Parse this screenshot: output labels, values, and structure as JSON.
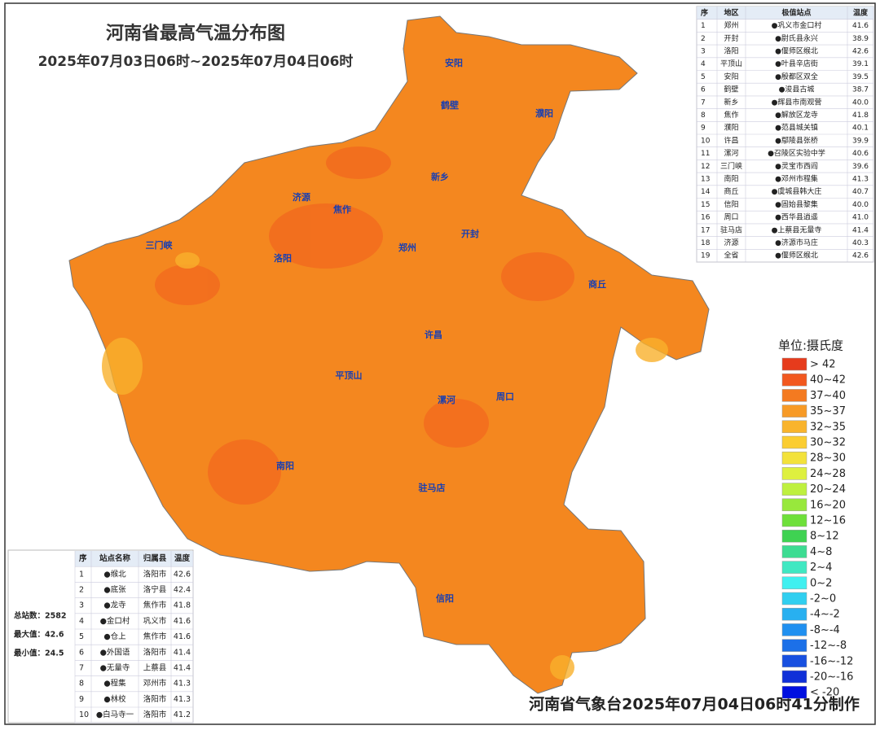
{
  "header": {
    "title": "河南省最高气温分布图",
    "subtitle": "2025年07月03日06时~2025年07月04日06时"
  },
  "extreme_table": {
    "columns": [
      "序",
      "地区",
      "极值站点",
      "温度"
    ],
    "rows": [
      [
        "1",
        "郑州",
        "●巩义市金口村",
        "41.6"
      ],
      [
        "2",
        "开封",
        "●尉氏县永兴",
        "38.9"
      ],
      [
        "3",
        "洛阳",
        "●偃师区缑北",
        "42.6"
      ],
      [
        "4",
        "平顶山",
        "●叶县辛店街",
        "39.1"
      ],
      [
        "5",
        "安阳",
        "●殷都区双全",
        "39.5"
      ],
      [
        "6",
        "鹤壁",
        "●浚县古城",
        "38.7"
      ],
      [
        "7",
        "新乡",
        "●辉县市南观营",
        "40.0"
      ],
      [
        "8",
        "焦作",
        "●解放区龙寺",
        "41.8"
      ],
      [
        "9",
        "濮阳",
        "●范县城关镇",
        "40.1"
      ],
      [
        "10",
        "许昌",
        "●鄢陵县张桥",
        "39.9"
      ],
      [
        "11",
        "漯河",
        "●召陵区实验中学",
        "40.6"
      ],
      [
        "12",
        "三门峡",
        "●灵宝市西阎",
        "39.6"
      ],
      [
        "13",
        "南阳",
        "●邓州市程集",
        "41.3"
      ],
      [
        "14",
        "商丘",
        "●虞城县韩大庄",
        "40.7"
      ],
      [
        "15",
        "信阳",
        "●固始县黎集",
        "40.0"
      ],
      [
        "16",
        "周口",
        "●西华县逍遥",
        "41.0"
      ],
      [
        "17",
        "驻马店",
        "●上蔡县无量寺",
        "41.4"
      ],
      [
        "18",
        "济源",
        "●济源市马庄",
        "40.3"
      ],
      [
        "19",
        "全省",
        "●偃师区缑北",
        "42.6"
      ]
    ]
  },
  "top_table": {
    "columns": [
      "序",
      "站点名称",
      "归属县",
      "温度"
    ],
    "rows": [
      [
        "1",
        "●缑北",
        "洛阳市",
        "42.6"
      ],
      [
        "2",
        "●底张",
        "洛宁县",
        "42.4"
      ],
      [
        "3",
        "●龙寺",
        "焦作市",
        "41.8"
      ],
      [
        "4",
        "●金口村",
        "巩义市",
        "41.6"
      ],
      [
        "5",
        "●仓上",
        "焦作市",
        "41.6"
      ],
      [
        "6",
        "●外国语",
        "洛阳市",
        "41.4"
      ],
      [
        "7",
        "●无量寺",
        "上蔡县",
        "41.4"
      ],
      [
        "8",
        "●程集",
        "邓州市",
        "41.3"
      ],
      [
        "9",
        "●林校",
        "洛阳市",
        "41.3"
      ],
      [
        "10",
        "●白马寺一",
        "洛阳市",
        "41.2"
      ]
    ]
  },
  "stats": [
    "总站数：2582",
    "最大值：42.6",
    "最小值：24.5"
  ],
  "cities": [
    "安阳",
    "鹤壁",
    "濮阳",
    "新乡",
    "济源",
    "焦作",
    "郑州",
    "开封",
    "洛阳",
    "三门峡",
    "商丘",
    "许昌",
    "平顶山",
    "漯河",
    "周口",
    "南阳",
    "驻马店",
    "信阳"
  ],
  "legend": {
    "title": "单位:摄氏度",
    "items": [
      {
        "label": "> 42",
        "color": "#e63b1c"
      },
      {
        "label": "40~42",
        "color": "#f2581f"
      },
      {
        "label": "37~40",
        "color": "#f47a20"
      },
      {
        "label": "35~37",
        "color": "#f79a26"
      },
      {
        "label": "32~35",
        "color": "#f9b42c"
      },
      {
        "label": "30~32",
        "color": "#fbcd31"
      },
      {
        "label": "28~30",
        "color": "#f3e23a"
      },
      {
        "label": "24~28",
        "color": "#def03f"
      },
      {
        "label": "20~24",
        "color": "#bef03f"
      },
      {
        "label": "16~20",
        "color": "#98e83c"
      },
      {
        "label": "12~16",
        "color": "#6ee03a"
      },
      {
        "label": "8~12",
        "color": "#3fd252"
      },
      {
        "label": "4~8",
        "color": "#3ddc92"
      },
      {
        "label": "2~4",
        "color": "#40e8c2"
      },
      {
        "label": "0~2",
        "color": "#40f0f0"
      },
      {
        "label": "-2~0",
        "color": "#30cff0"
      },
      {
        "label": "-4~-2",
        "color": "#28b0f0"
      },
      {
        "label": "-8~-4",
        "color": "#2090f0"
      },
      {
        "label": "-12~-8",
        "color": "#1c70e8"
      },
      {
        "label": "-16~-12",
        "color": "#1850e0"
      },
      {
        "label": "-20~-16",
        "color": "#1030d8"
      },
      {
        "label": "< -20",
        "color": "#0010e0"
      }
    ]
  },
  "footer": "河南省气象台2025年07月04日06时41分制作"
}
